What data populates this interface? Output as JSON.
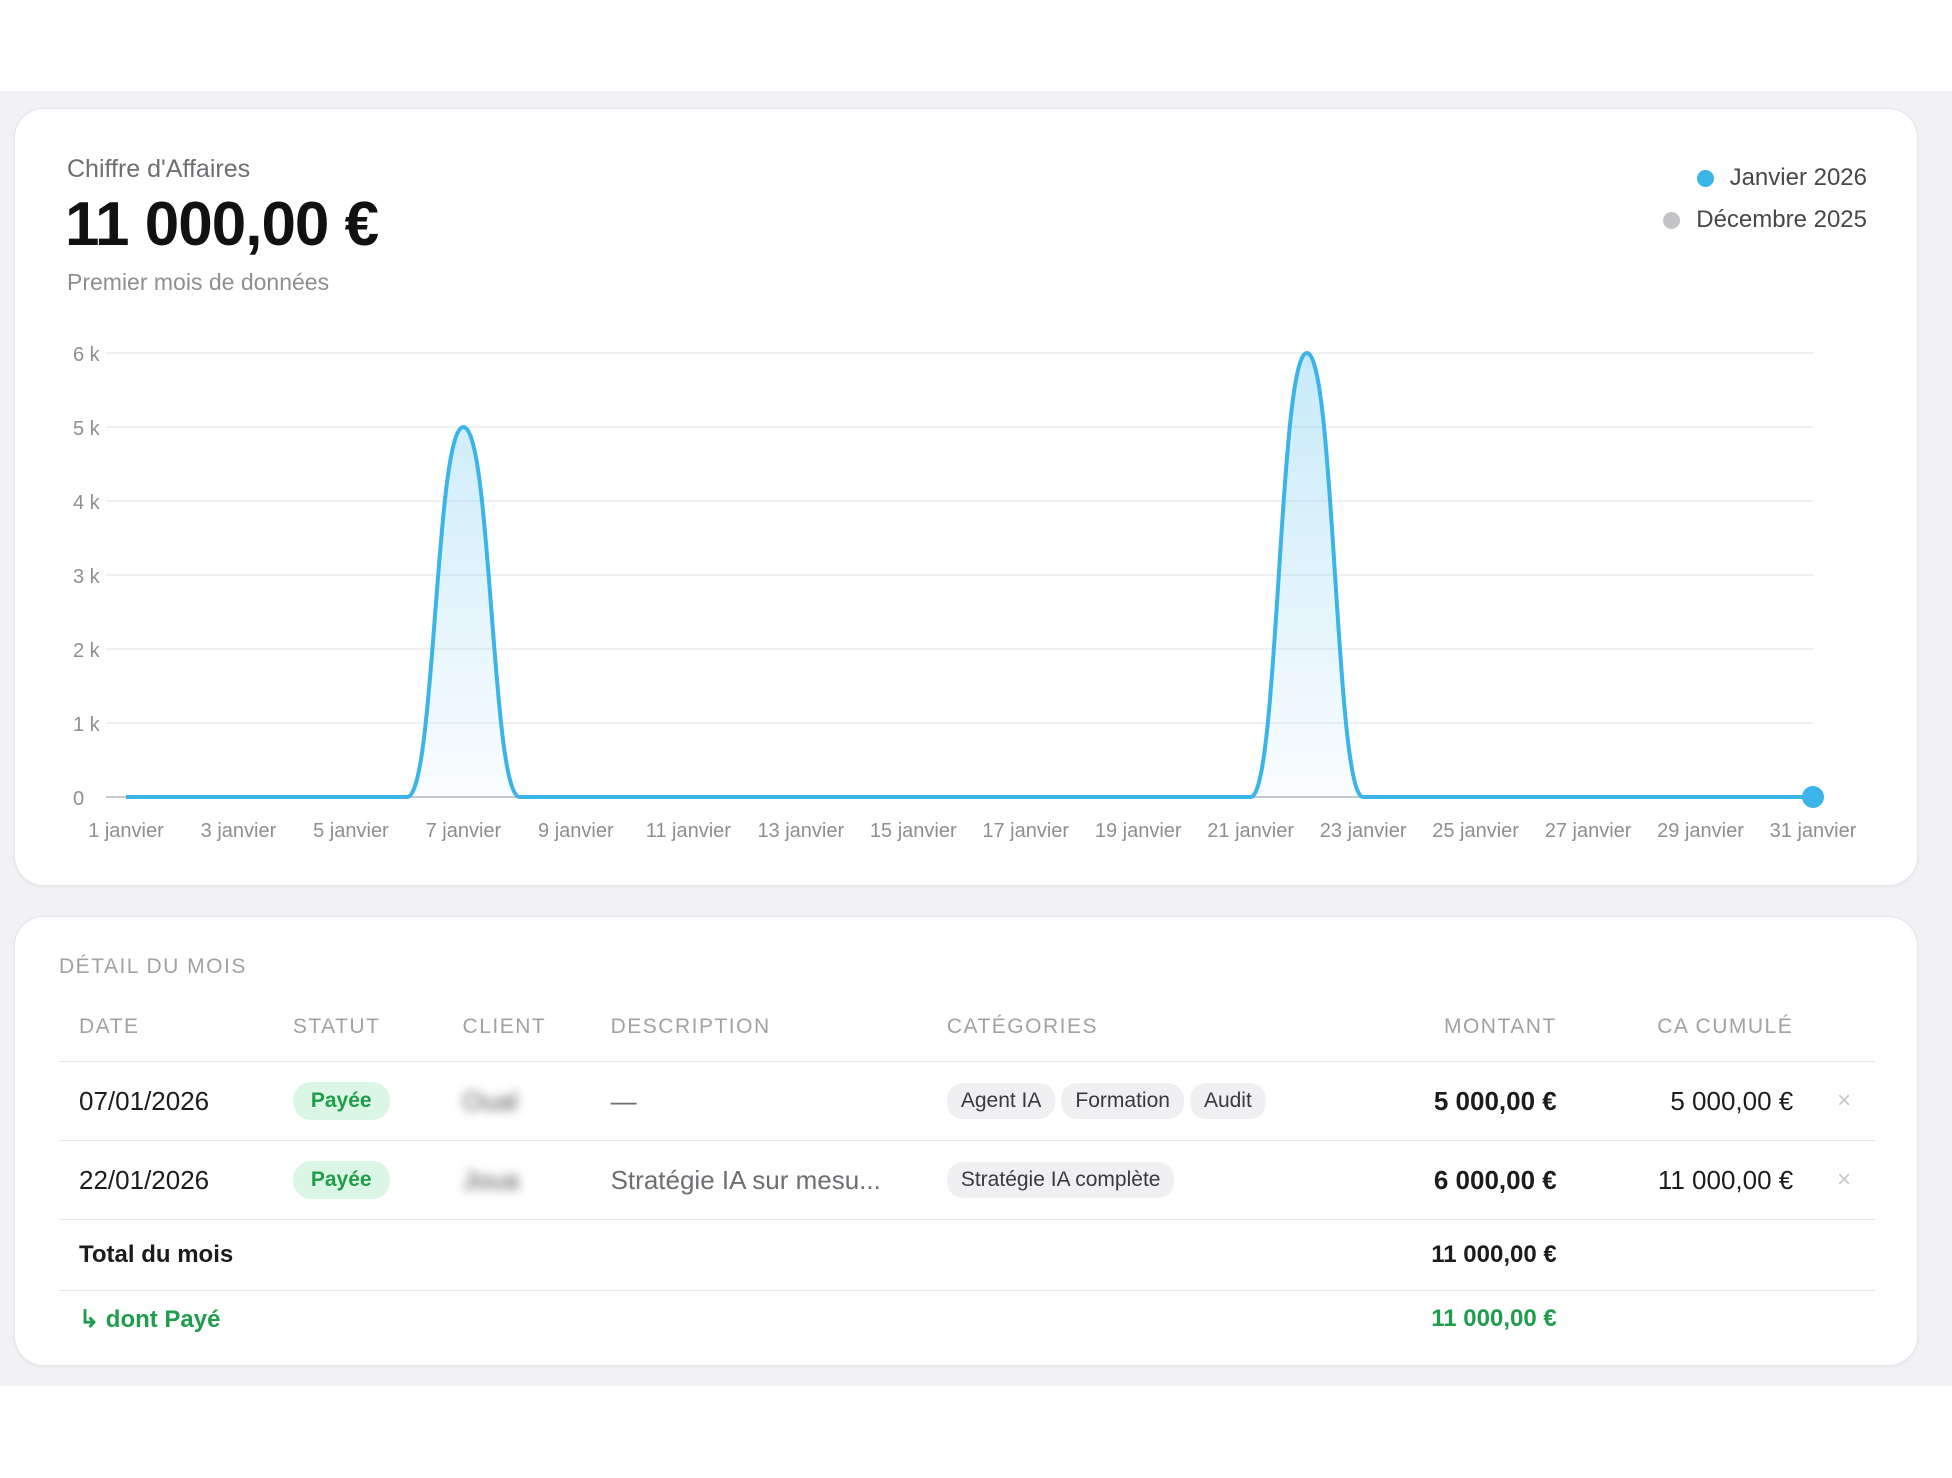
{
  "kpi": {
    "label": "Chiffre d'Affaires",
    "value": "11 000,00 €",
    "subtitle": "Premier mois de données"
  },
  "legend": [
    {
      "label": "Janvier 2026",
      "color": "#3bb4ea"
    },
    {
      "label": "Décembre 2025",
      "color": "#c4c4c6"
    }
  ],
  "chart_data": {
    "type": "area",
    "x_tick_labels": [
      "1 janvier",
      "3 janvier",
      "5 janvier",
      "7 janvier",
      "9 janvier",
      "11 janvier",
      "13 janvier",
      "15 janvier",
      "17 janvier",
      "19 janvier",
      "21 janvier",
      "23 janvier",
      "25 janvier",
      "27 janvier",
      "29 janvier",
      "31 janvier"
    ],
    "y_tick_labels": [
      "0",
      "1 k",
      "2 k",
      "3 k",
      "4 k",
      "5 k",
      "6 k"
    ],
    "ylim": [
      0,
      6000
    ],
    "xlim": [
      1,
      31
    ],
    "grid": true,
    "series": [
      {
        "name": "Janvier 2026",
        "color": "#3bb4ea",
        "x": [
          1,
          2,
          3,
          4,
          5,
          6,
          7,
          8,
          9,
          10,
          11,
          12,
          13,
          14,
          15,
          16,
          17,
          18,
          19,
          20,
          21,
          22,
          23,
          24,
          25,
          26,
          27,
          28,
          29,
          30,
          31
        ],
        "values": [
          0,
          0,
          0,
          0,
          0,
          0,
          5000,
          0,
          0,
          0,
          0,
          0,
          0,
          0,
          0,
          0,
          0,
          0,
          0,
          0,
          0,
          6000,
          0,
          0,
          0,
          0,
          0,
          0,
          0,
          0,
          0
        ]
      }
    ]
  },
  "table": {
    "section_title": "DÉTAIL DU MOIS",
    "headers": {
      "date": "DATE",
      "status": "STATUT",
      "client": "CLIENT",
      "description": "DESCRIPTION",
      "categories": "CATÉGORIES",
      "amount": "MONTANT",
      "cumulative": "CA CUMULÉ"
    },
    "rows": [
      {
        "date": "07/01/2026",
        "status": "Payée",
        "client": "Oual",
        "description": "—",
        "categories": [
          "Agent IA",
          "Formation",
          "Audit"
        ],
        "amount": "5 000,00 €",
        "cumulative": "5 000,00 €",
        "delete": "×"
      },
      {
        "date": "22/01/2026",
        "status": "Payée",
        "client": "Joua",
        "description": "Stratégie IA sur mesu...",
        "categories": [
          "Stratégie IA complète"
        ],
        "amount": "6 000,00 €",
        "cumulative": "11 000,00 €",
        "delete": "×"
      }
    ],
    "total_label": "Total du mois",
    "total_value": "11 000,00 €",
    "paid_label": "↳ dont Payé",
    "paid_value": "11 000,00 €"
  }
}
